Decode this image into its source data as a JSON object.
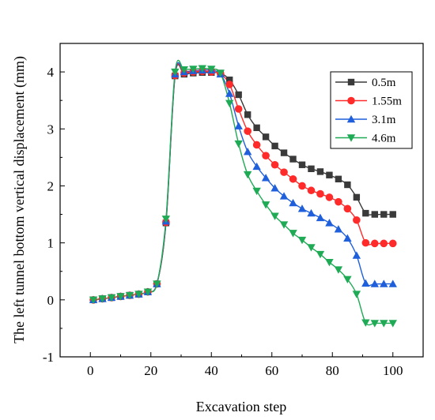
{
  "chart_data": {
    "type": "line",
    "title": "",
    "xlabel": "Excavation step",
    "ylabel": "The left tunnel bottom vertical displacement (mm)",
    "xlim": [
      -10,
      110
    ],
    "ylim": [
      -1,
      4.5
    ],
    "xticks": [
      0,
      20,
      40,
      60,
      80,
      100
    ],
    "yticks": [
      -1,
      0,
      1,
      2,
      3,
      4
    ],
    "grid": false,
    "legend_position": "right",
    "series": [
      {
        "name": "0.5m",
        "color": "#3a3a3a",
        "marker": "square",
        "x": [
          1,
          4,
          7,
          10,
          13,
          16,
          19,
          22,
          25,
          28,
          31,
          34,
          37,
          40,
          43,
          46,
          49,
          52,
          55,
          58,
          61,
          64,
          67,
          70,
          73,
          76,
          79,
          82,
          85,
          88,
          91,
          94,
          97,
          100
        ],
        "y": [
          0.0,
          0.02,
          0.04,
          0.06,
          0.08,
          0.1,
          0.14,
          0.28,
          1.35,
          3.93,
          3.96,
          3.98,
          3.99,
          3.99,
          3.98,
          3.86,
          3.6,
          3.25,
          3.02,
          2.86,
          2.7,
          2.58,
          2.47,
          2.37,
          2.3,
          2.25,
          2.19,
          2.12,
          2.02,
          1.8,
          1.52,
          1.5,
          1.5,
          1.5
        ]
      },
      {
        "name": "1.55m",
        "color": "#ff2a2a",
        "marker": "circle",
        "x": [
          1,
          4,
          7,
          10,
          13,
          16,
          19,
          22,
          25,
          28,
          31,
          34,
          37,
          40,
          43,
          46,
          49,
          52,
          55,
          58,
          61,
          64,
          67,
          70,
          73,
          76,
          79,
          82,
          85,
          88,
          91,
          94,
          97,
          100
        ],
        "y": [
          0.0,
          0.02,
          0.04,
          0.06,
          0.08,
          0.1,
          0.14,
          0.28,
          1.36,
          3.94,
          3.98,
          4.0,
          4.01,
          4.0,
          3.97,
          3.78,
          3.35,
          2.96,
          2.72,
          2.53,
          2.37,
          2.24,
          2.12,
          2.0,
          1.92,
          1.86,
          1.8,
          1.72,
          1.6,
          1.4,
          1.0,
          0.99,
          0.99,
          0.99
        ]
      },
      {
        "name": "3.1m",
        "color": "#1f5fdc",
        "marker": "triangle-up",
        "x": [
          1,
          4,
          7,
          10,
          13,
          16,
          19,
          22,
          25,
          28,
          31,
          34,
          37,
          40,
          43,
          46,
          49,
          52,
          55,
          58,
          61,
          64,
          67,
          70,
          73,
          76,
          79,
          82,
          85,
          88,
          91,
          94,
          97,
          100
        ],
        "y": [
          0.0,
          0.02,
          0.04,
          0.06,
          0.08,
          0.1,
          0.14,
          0.28,
          1.38,
          3.96,
          4.0,
          4.02,
          4.03,
          4.03,
          3.96,
          3.62,
          3.05,
          2.6,
          2.34,
          2.14,
          1.96,
          1.82,
          1.7,
          1.6,
          1.52,
          1.44,
          1.35,
          1.24,
          1.08,
          0.78,
          0.29,
          0.28,
          0.28,
          0.28
        ]
      },
      {
        "name": "4.6m",
        "color": "#1faa55",
        "marker": "triangle-down",
        "x": [
          1,
          4,
          7,
          10,
          13,
          16,
          19,
          22,
          25,
          28,
          31,
          34,
          37,
          40,
          43,
          46,
          49,
          52,
          55,
          58,
          61,
          64,
          67,
          70,
          73,
          76,
          79,
          82,
          85,
          88,
          91,
          94,
          97,
          100
        ],
        "y": [
          0.0,
          0.02,
          0.04,
          0.06,
          0.08,
          0.1,
          0.14,
          0.28,
          1.42,
          4.0,
          4.04,
          4.05,
          4.06,
          4.05,
          3.98,
          3.45,
          2.74,
          2.2,
          1.91,
          1.67,
          1.47,
          1.32,
          1.17,
          1.05,
          0.92,
          0.8,
          0.66,
          0.53,
          0.36,
          0.1,
          -0.4,
          -0.41,
          -0.41,
          -0.41
        ]
      }
    ]
  }
}
